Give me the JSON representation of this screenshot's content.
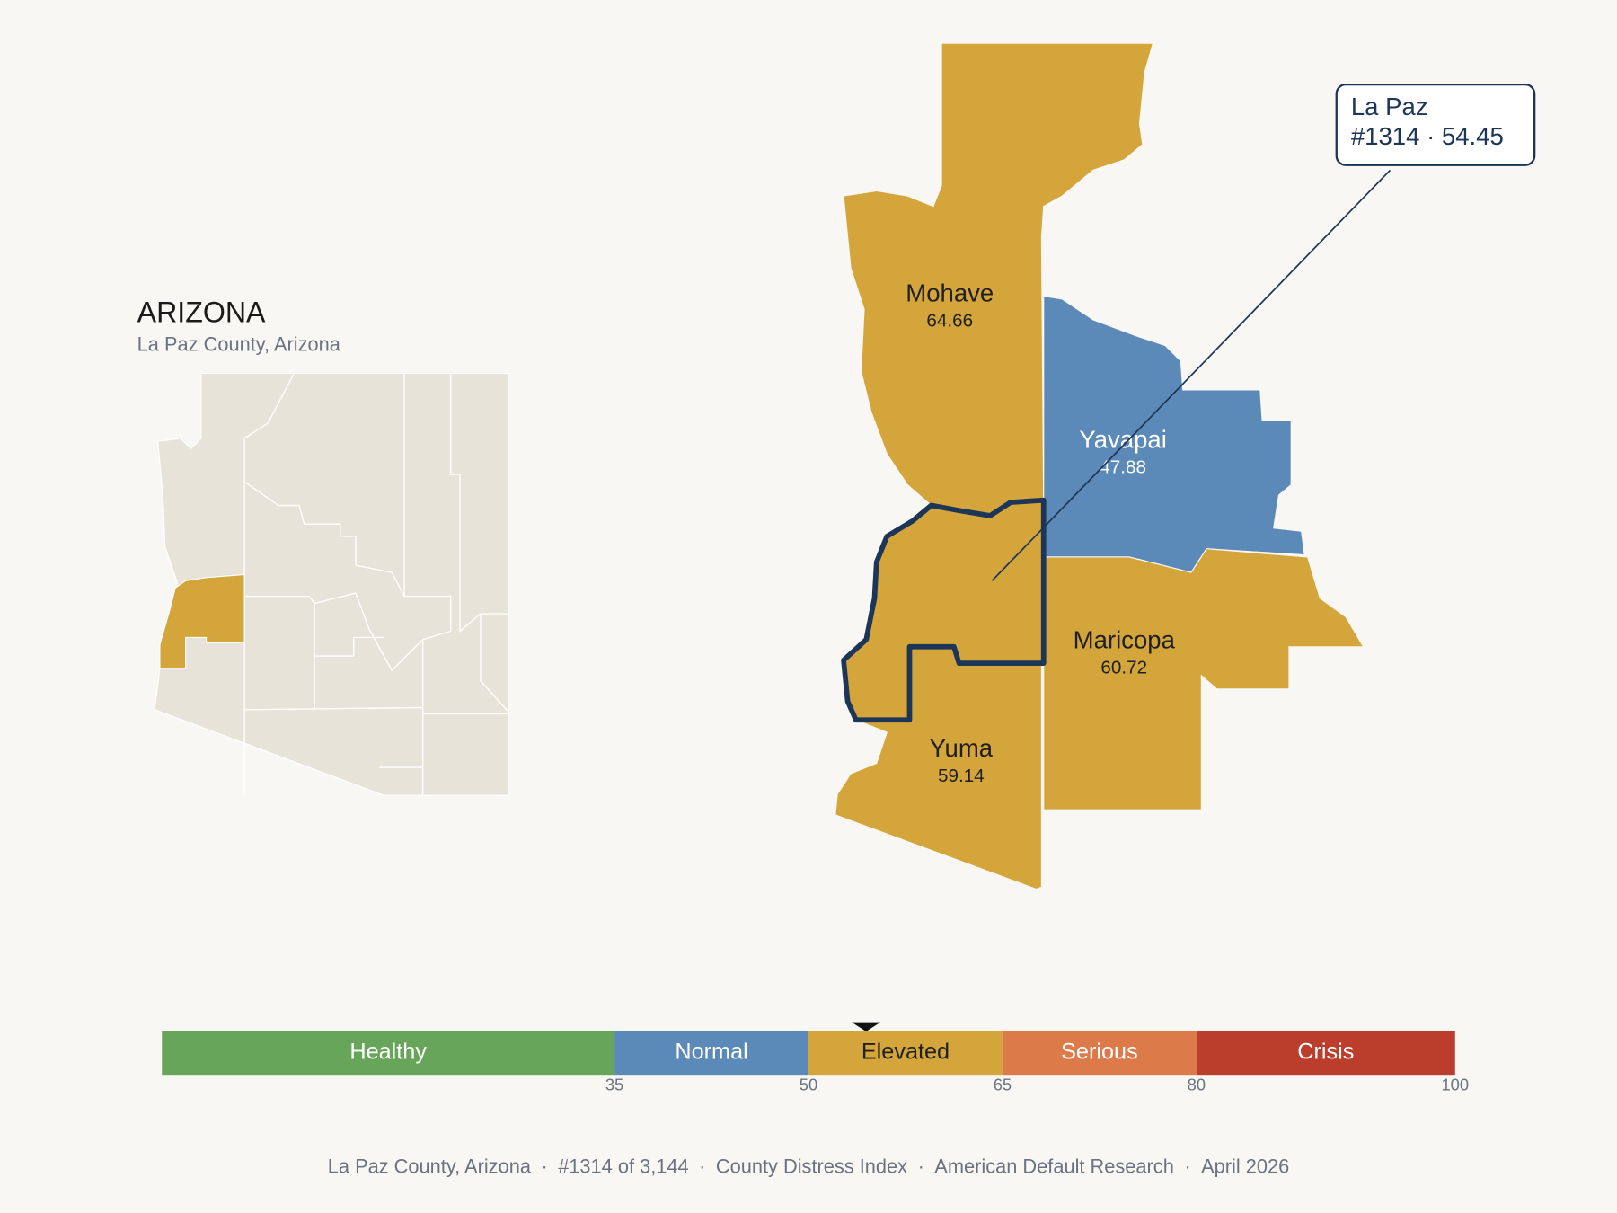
{
  "title": "ARIZONA",
  "subtitle": "La Paz County, Arizona",
  "counties": [
    {
      "name": "Mohave",
      "value": 64.66
    },
    {
      "name": "Yavapai",
      "value": 47.88
    },
    {
      "name": "Maricopa",
      "value": 60.72
    },
    {
      "name": "Yuma",
      "value": 59.14
    }
  ],
  "highlight": {
    "name": "La Paz",
    "label": "#1314 · 54.45",
    "value": 54.45
  },
  "scale": {
    "lim": [
      0,
      100
    ],
    "ticks": [
      35,
      50,
      65,
      80,
      100
    ],
    "bands": [
      {
        "name": "Healthy",
        "color": "#67a65a",
        "text_color": "#ffffff"
      },
      {
        "name": "Normal",
        "color": "#5b8ab8",
        "text_color": "#ffffff"
      },
      {
        "name": "Elevated",
        "color": "#d4a53a",
        "text_color": "#1f1f1f"
      },
      {
        "name": "Serious",
        "color": "#dd7a4a",
        "text_color": "#ffffff"
      },
      {
        "name": "Crisis",
        "color": "#bb3e2c",
        "text_color": "#ffffff"
      }
    ]
  },
  "footer": {
    "separator": "·",
    "items": [
      "La Paz County, Arizona",
      "#1314 of 3,144",
      "County Distress Index",
      "American Default Research",
      "April 2026"
    ]
  }
}
